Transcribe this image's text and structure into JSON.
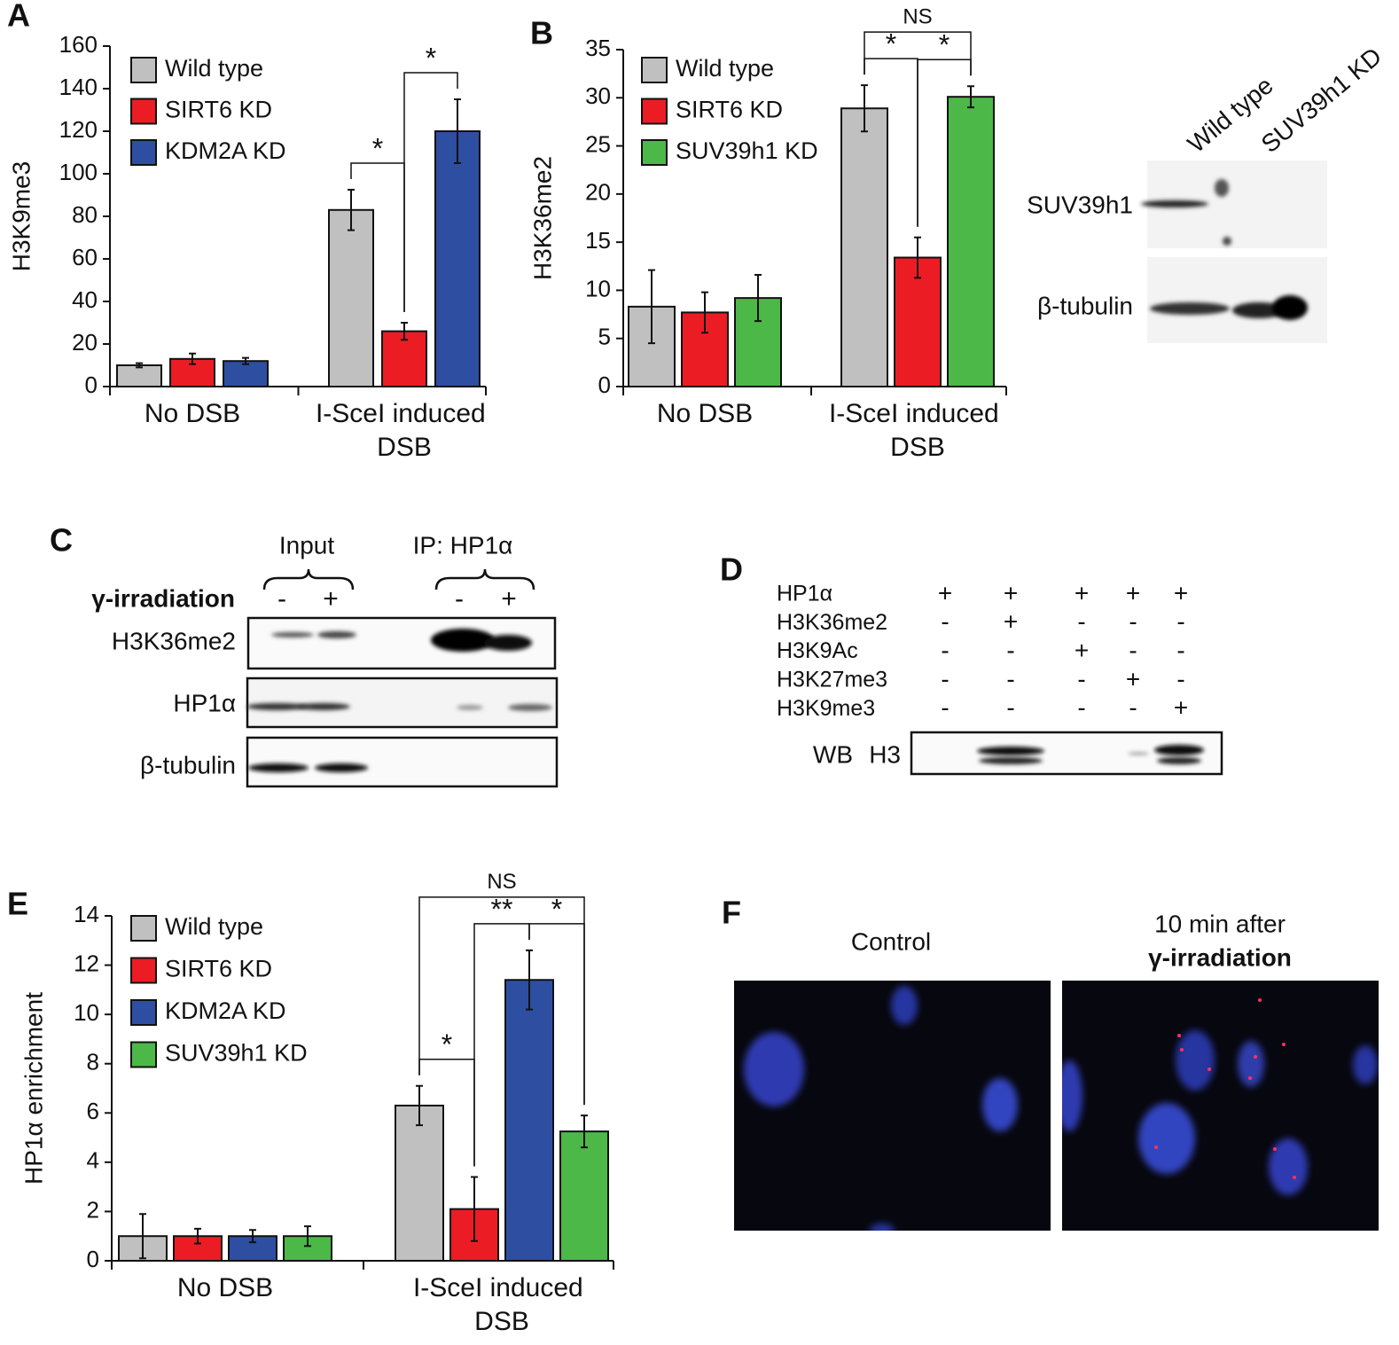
{
  "panel_labels": [
    "A",
    "B",
    "C",
    "D",
    "E",
    "F"
  ],
  "chart_data": [
    {
      "type": "bar",
      "y_label": "H3K9me3",
      "categories": [
        "No DSB",
        "I-SceI induced DSB"
      ],
      "series": [
        {
          "name": "Wild type",
          "color": "#c0c0c0",
          "values": [
            10,
            83
          ],
          "errors": [
            1,
            9.5
          ]
        },
        {
          "name": "SIRT6 KD",
          "color": "#ec1c24",
          "values": [
            13,
            26
          ],
          "errors": [
            2.5,
            4
          ]
        },
        {
          "name": "KDM2A KD",
          "color": "#2e4ea1",
          "values": [
            12,
            120
          ],
          "errors": [
            1.5,
            15
          ]
        }
      ],
      "ylim": [
        0,
        160
      ],
      "yticks": [
        0,
        20,
        40,
        60,
        80,
        100,
        120,
        140,
        160
      ],
      "annotations": [
        {
          "text": "*",
          "series": [
            "Wild type",
            "SIRT6 KD"
          ]
        },
        {
          "text": "*",
          "series": [
            "SIRT6 KD",
            "KDM2A KD"
          ]
        }
      ]
    },
    {
      "type": "bar",
      "y_label": "H3K36me2",
      "categories": [
        "No DSB",
        "I-SceI induced DSB"
      ],
      "series": [
        {
          "name": "Wild type",
          "color": "#c0c0c0",
          "values": [
            8.3,
            28.9
          ],
          "errors": [
            3.8,
            2.4
          ]
        },
        {
          "name": "SIRT6 KD",
          "color": "#ec1c24",
          "values": [
            7.7,
            13.4
          ],
          "errors": [
            2.1,
            2.1
          ]
        },
        {
          "name": "SUV39h1 KD",
          "color": "#4cb848",
          "values": [
            9.2,
            30.1
          ],
          "errors": [
            2.4,
            1.1
          ]
        }
      ],
      "ylim": [
        0,
        35
      ],
      "yticks": [
        0,
        5,
        10,
        15,
        20,
        25,
        30,
        35
      ],
      "annotations": [
        {
          "text": "*",
          "series": [
            "Wild type",
            "SIRT6 KD"
          ]
        },
        {
          "text": "*",
          "series": [
            "SIRT6 KD",
            "SUV39h1 KD"
          ]
        },
        {
          "text": "NS",
          "series": [
            "Wild type",
            "SUV39h1 KD"
          ]
        }
      ]
    },
    {
      "type": "bar",
      "y_label": "HP1α enrichment",
      "categories": [
        "No DSB",
        "I-SceI induced DSB"
      ],
      "series": [
        {
          "name": "Wild type",
          "color": "#c0c0c0",
          "values": [
            1,
            6.3
          ],
          "errors": [
            0.9,
            0.8
          ]
        },
        {
          "name": "SIRT6 KD",
          "color": "#ec1c24",
          "values": [
            1,
            2.1
          ],
          "errors": [
            0.3,
            1.3
          ]
        },
        {
          "name": "KDM2A KD",
          "color": "#2e4ea1",
          "values": [
            1,
            11.4
          ],
          "errors": [
            0.25,
            1.2
          ]
        },
        {
          "name": "SUV39h1 KD",
          "color": "#4cb848",
          "values": [
            1,
            5.25
          ],
          "errors": [
            0.4,
            0.65
          ]
        }
      ],
      "ylim": [
        0,
        14
      ],
      "yticks": [
        0,
        2,
        4,
        6,
        8,
        10,
        12,
        14
      ],
      "annotations": [
        {
          "text": "*",
          "series": [
            "Wild type",
            "SIRT6 KD"
          ]
        },
        {
          "text": "**",
          "series": [
            "SIRT6 KD",
            "KDM2A KD"
          ]
        },
        {
          "text": "*",
          "series": [
            "KDM2A KD",
            "SUV39h1 KD"
          ]
        },
        {
          "text": "NS",
          "series": [
            "Wild type",
            "SUV39h1 KD"
          ]
        }
      ]
    }
  ],
  "blot_b": {
    "lanes": [
      "Wild type",
      "SUV39h1 KD"
    ],
    "rows": [
      "SUV39h1",
      "β-tubulin"
    ]
  },
  "panel_c": {
    "groups": [
      "Input",
      "IP:  HP1α"
    ],
    "treatment": "γ-irradiation",
    "lane_signs": [
      "-",
      "+",
      "-",
      "+"
    ],
    "rows": [
      "H3K36me2",
      "HP1α",
      "β-tubulin"
    ]
  },
  "panel_d": {
    "rows": [
      {
        "label": "HP1α",
        "signs": [
          "+",
          "+",
          "+",
          "+",
          "+"
        ]
      },
      {
        "label": "H3K36me2",
        "signs": [
          "-",
          "+",
          "-",
          "-",
          "-"
        ]
      },
      {
        "label": "H3K9Ac",
        "signs": [
          "-",
          "-",
          "+",
          "-",
          "-"
        ]
      },
      {
        "label": "H3K27me3",
        "signs": [
          "-",
          "-",
          "-",
          "+",
          "-"
        ]
      },
      {
        "label": "H3K9me3",
        "signs": [
          "-",
          "-",
          "-",
          "-",
          "+"
        ]
      }
    ],
    "readout": [
      "WB",
      "H3"
    ]
  },
  "panel_f": {
    "images": [
      {
        "title_lines": [
          "Control"
        ]
      },
      {
        "title_lines": [
          "10 min after",
          "γ-irradiation"
        ]
      }
    ]
  }
}
